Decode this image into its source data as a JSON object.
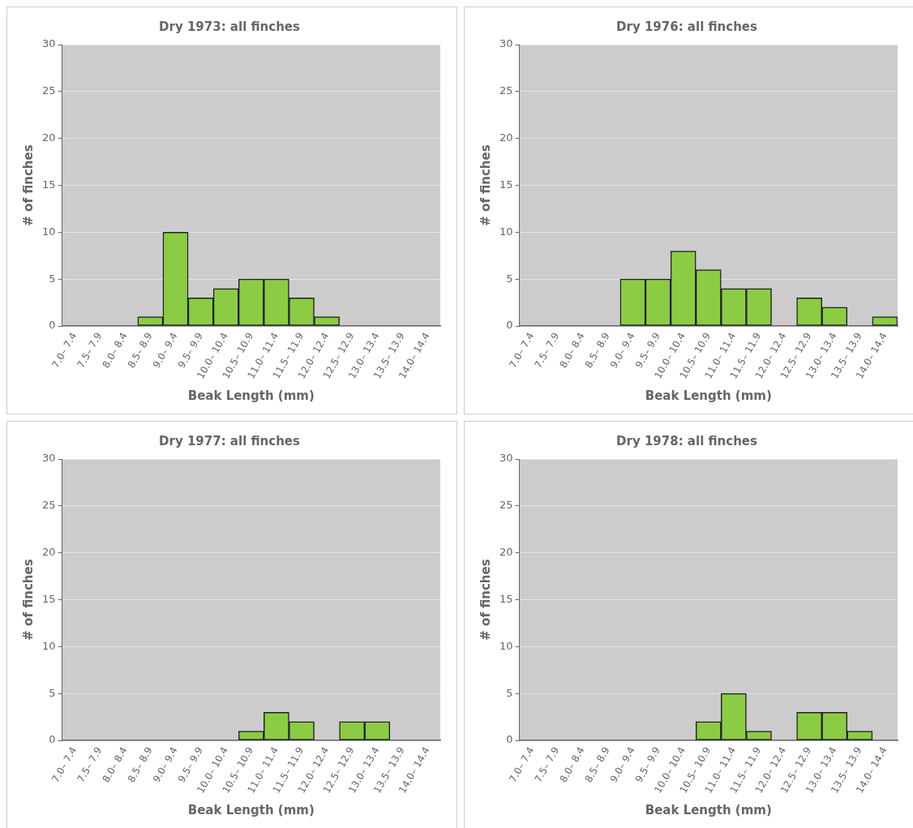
{
  "chart_data": [
    {
      "type": "bar",
      "title": "Dry 1973: all finches",
      "xlabel": "Beak Length (mm)",
      "ylabel": "# of finches",
      "categories": [
        "7.0– 7.4",
        "7.5– 7.9",
        "8.0– 8.4",
        "8.5– 8.9",
        "9.0– 9.4",
        "9.5– 9.9",
        "10.0– 10.4",
        "10.5– 10.9",
        "11.0– 11.4",
        "11.5– 11.9",
        "12.0– 12.4",
        "12.5– 12.9",
        "13.0– 13.4",
        "13.5– 13.9",
        "14.0– 14.4"
      ],
      "values": [
        0,
        0,
        0,
        1,
        10,
        3,
        4,
        5,
        5,
        3,
        1,
        0,
        0,
        0,
        0
      ],
      "color": "#8ccc44",
      "ylim": [
        0,
        30
      ],
      "yticks": [
        0,
        5,
        10,
        15,
        20,
        25,
        30
      ],
      "grid": "y",
      "legend": false
    },
    {
      "type": "bar",
      "title": "Dry 1976: all finches",
      "xlabel": "Beak Length (mm)",
      "ylabel": "# of finches",
      "categories": [
        "7.0– 7.4",
        "7.5– 7.9",
        "8.0– 8.4",
        "8.5– 8.9",
        "9.0– 9.4",
        "9.5– 9.9",
        "10.0– 10.4",
        "10.5– 10.9",
        "11.0– 11.4",
        "11.5– 11.9",
        "12.0– 12.4",
        "12.5– 12.9",
        "13.0– 13.4",
        "13.5– 13.9",
        "14.0– 14.4"
      ],
      "values": [
        0,
        0,
        0,
        0,
        5,
        5,
        8,
        6,
        4,
        4,
        0,
        3,
        2,
        0,
        1
      ],
      "color": "#8ccc44",
      "ylim": [
        0,
        30
      ],
      "yticks": [
        0,
        5,
        10,
        15,
        20,
        25,
        30
      ],
      "grid": "y",
      "legend": false
    },
    {
      "type": "bar",
      "title": "Dry 1977: all finches",
      "xlabel": "Beak Length (mm)",
      "ylabel": "# of finches",
      "categories": [
        "7.0– 7.4",
        "7.5– 7.9",
        "8.0– 8.4",
        "8.5– 8.9",
        "9.0– 9.4",
        "9.5– 9.9",
        "10.0– 10.4",
        "10.5– 10.9",
        "11.0– 11.4",
        "11.5– 11.9",
        "12.0– 12.4",
        "12.5– 12.9",
        "13.0– 13.4",
        "13.5– 13.9",
        "14.0– 14.4"
      ],
      "values": [
        0,
        0,
        0,
        0,
        0,
        0,
        0,
        1,
        3,
        2,
        0,
        2,
        2,
        0,
        0
      ],
      "color": "#8ccc44",
      "ylim": [
        0,
        30
      ],
      "yticks": [
        0,
        5,
        10,
        15,
        20,
        25,
        30
      ],
      "grid": "y",
      "legend": false
    },
    {
      "type": "bar",
      "title": "Dry 1978: all finches",
      "xlabel": "Beak Length (mm)",
      "ylabel": "# of finches",
      "categories": [
        "7.0– 7.4",
        "7.5– 7.9",
        "8.0– 8.4",
        "8.5– 8.9",
        "9.0– 9.4",
        "9.5– 9.9",
        "10.0– 10.4",
        "10.5– 10.9",
        "11.0– 11.4",
        "11.5– 11.9",
        "12.0– 12.4",
        "12.5– 12.9",
        "13.0– 13.4",
        "13.5– 13.9",
        "14.0– 14.4"
      ],
      "values": [
        0,
        0,
        0,
        0,
        0,
        0,
        0,
        2,
        5,
        1,
        0,
        3,
        3,
        1,
        0
      ],
      "color": "#8ccc44",
      "ylim": [
        0,
        30
      ],
      "yticks": [
        0,
        5,
        10,
        15,
        20,
        25,
        30
      ],
      "grid": "y",
      "legend": false
    }
  ]
}
